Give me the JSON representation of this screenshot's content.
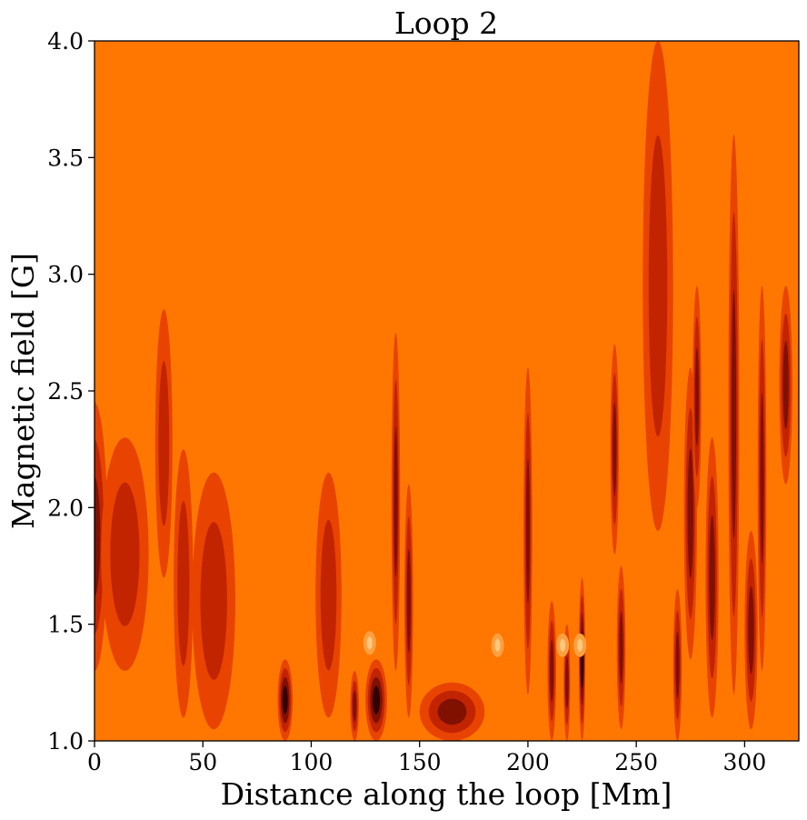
{
  "chart_data": {
    "type": "heatmap",
    "title": "Loop 2",
    "xlabel": "Distance along the loop [Mm]",
    "ylabel": "Magnetic field [G]",
    "xlim": [
      0,
      325
    ],
    "ylim": [
      1.0,
      4.0
    ],
    "x_ticks": [
      0,
      50,
      100,
      150,
      200,
      250,
      300
    ],
    "x_tick_labels": [
      "0",
      "50",
      "100",
      "150",
      "200",
      "250",
      "300"
    ],
    "y_ticks": [
      1.0,
      1.5,
      2.0,
      2.5,
      3.0,
      3.5,
      4.0
    ],
    "y_tick_labels": [
      "1.0",
      "1.5",
      "2.0",
      "2.5",
      "3.0",
      "3.5",
      "4.0"
    ],
    "colormap": "gist_heat",
    "background_level": 4,
    "level_colors": [
      "#330000",
      "#801000",
      "#c22400",
      "#e84400",
      "#ff7700",
      "#ffa040"
    ],
    "features": [
      {
        "x": 0,
        "w": 12,
        "ybot": 1.3,
        "ytop": 2.45,
        "peak": 1
      },
      {
        "x": 14,
        "w": 22,
        "ybot": 1.3,
        "ytop": 2.3,
        "peak": 2
      },
      {
        "x": 32,
        "w": 8,
        "ybot": 1.7,
        "ytop": 2.85,
        "peak": 2
      },
      {
        "x": 41,
        "w": 9,
        "ybot": 1.1,
        "ytop": 2.25,
        "peak": 2
      },
      {
        "x": 55,
        "w": 20,
        "ybot": 1.05,
        "ytop": 2.15,
        "peak": 2
      },
      {
        "x": 88,
        "w": 7,
        "ybot": 1.0,
        "ytop": 1.35,
        "peak": 0
      },
      {
        "x": 108,
        "w": 12,
        "ybot": 1.1,
        "ytop": 2.15,
        "peak": 2
      },
      {
        "x": 120,
        "w": 4,
        "ybot": 1.0,
        "ytop": 1.3,
        "peak": 1
      },
      {
        "x": 130,
        "w": 10,
        "ybot": 1.0,
        "ytop": 1.35,
        "peak": 0
      },
      {
        "x": 139,
        "w": 4,
        "ybot": 1.3,
        "ytop": 2.75,
        "peak": 1
      },
      {
        "x": 145,
        "w": 4,
        "ybot": 1.1,
        "ytop": 2.1,
        "peak": 1
      },
      {
        "x": 165,
        "w": 30,
        "ybot": 1.0,
        "ytop": 1.25,
        "peak": 1
      },
      {
        "x": 200,
        "w": 4,
        "ybot": 1.2,
        "ytop": 2.6,
        "peak": 1
      },
      {
        "x": 211,
        "w": 4,
        "ybot": 1.0,
        "ytop": 1.6,
        "peak": 1
      },
      {
        "x": 218,
        "w": 3,
        "ybot": 1.0,
        "ytop": 1.5,
        "peak": 1
      },
      {
        "x": 225,
        "w": 3,
        "ybot": 1.0,
        "ytop": 1.7,
        "peak": 0
      },
      {
        "x": 240,
        "w": 4,
        "ybot": 1.8,
        "ytop": 2.7,
        "peak": 1
      },
      {
        "x": 243,
        "w": 4,
        "ybot": 1.05,
        "ytop": 1.75,
        "peak": 1
      },
      {
        "x": 260,
        "w": 14,
        "ybot": 1.9,
        "ytop": 4.0,
        "peak": 2
      },
      {
        "x": 269,
        "w": 4,
        "ybot": 1.0,
        "ytop": 1.65,
        "peak": 1
      },
      {
        "x": 275,
        "w": 6,
        "ybot": 1.35,
        "ytop": 2.6,
        "peak": 1
      },
      {
        "x": 278,
        "w": 4,
        "ybot": 2.0,
        "ytop": 2.95,
        "peak": 1
      },
      {
        "x": 285,
        "w": 6,
        "ybot": 1.1,
        "ytop": 2.3,
        "peak": 1
      },
      {
        "x": 295,
        "w": 5,
        "ybot": 1.2,
        "ytop": 3.6,
        "peak": 1
      },
      {
        "x": 303,
        "w": 6,
        "ybot": 1.05,
        "ytop": 1.9,
        "peak": 1
      },
      {
        "x": 308,
        "w": 4,
        "ybot": 1.3,
        "ytop": 2.95,
        "peak": 1
      },
      {
        "x": 319,
        "w": 6,
        "ybot": 2.1,
        "ytop": 2.95,
        "peak": 1
      }
    ],
    "bright_spots": [
      {
        "x": 127,
        "y": 1.42
      },
      {
        "x": 186,
        "y": 1.41
      },
      {
        "x": 216,
        "y": 1.41
      },
      {
        "x": 224,
        "y": 1.41
      }
    ]
  }
}
